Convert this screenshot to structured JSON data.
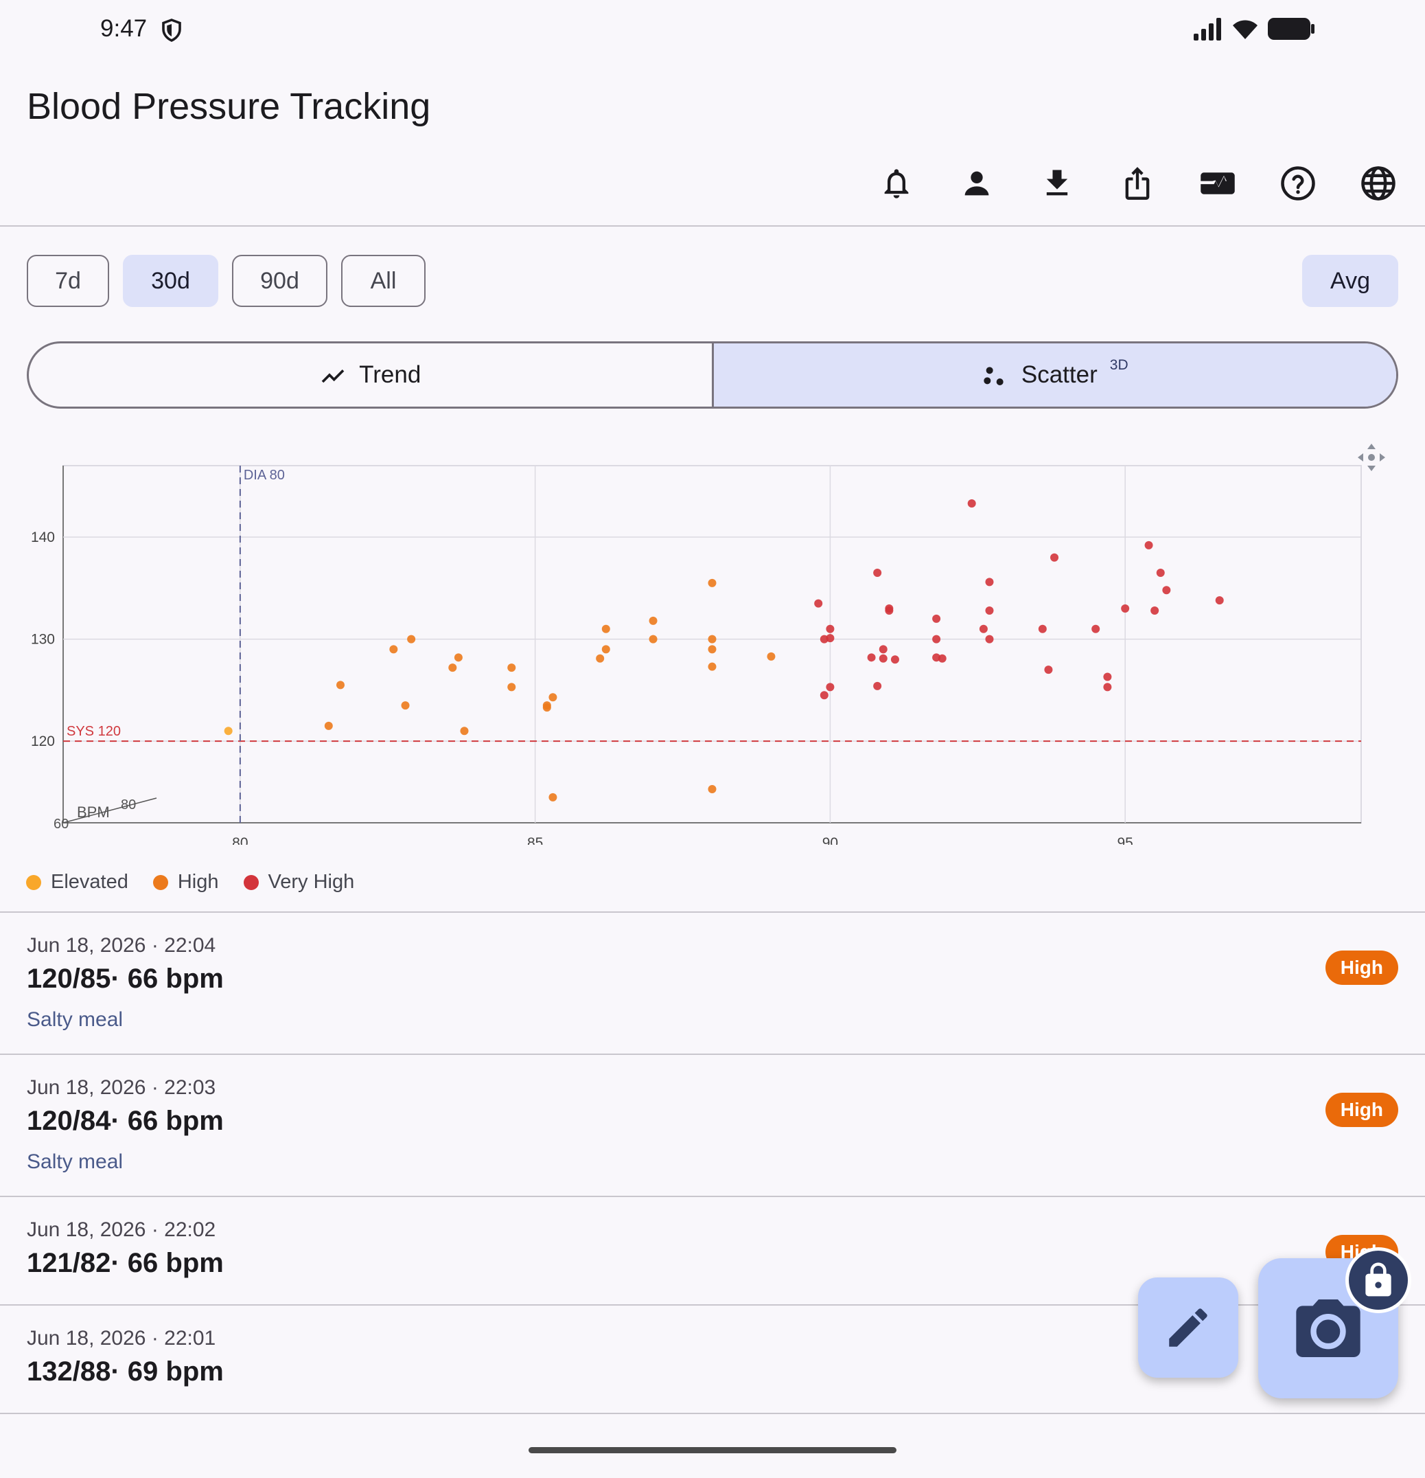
{
  "status": {
    "time": "9:47"
  },
  "app": {
    "title": "Blood Pressure Tracking"
  },
  "toolbar": {
    "icons": [
      "bell-icon",
      "person-icon",
      "download-icon",
      "share-icon",
      "monitor-heart-icon",
      "help-icon",
      "globe-icon"
    ]
  },
  "range_chips": [
    {
      "label": "7d",
      "selected": false
    },
    {
      "label": "30d",
      "selected": true
    },
    {
      "label": "90d",
      "selected": false
    },
    {
      "label": "All",
      "selected": false
    }
  ],
  "avg_chip": {
    "label": "Avg"
  },
  "view_toggle": {
    "trend_label": "Trend",
    "scatter_label": "Scatter",
    "scatter_badge": "3D",
    "selected": "scatter"
  },
  "chart_data": {
    "type": "scatter",
    "xlabel": "",
    "ylabel": "",
    "x_ticks": [
      "80",
      "85",
      "90",
      "95"
    ],
    "y_ticks": [
      "140",
      "130",
      "120"
    ],
    "xlim": [
      77,
      99
    ],
    "ylim": [
      112,
      147
    ],
    "reference_lines": [
      {
        "label": "SYS 120",
        "axis": "y",
        "value": 120,
        "color": "#d0393e"
      },
      {
        "label": "DIA 80",
        "axis": "x",
        "value": 80,
        "color": "#5d6396"
      }
    ],
    "bpm_axis": {
      "label": "BPM",
      "ticks": [
        "60",
        "80"
      ]
    },
    "grid": true,
    "legend": "bottom-left",
    "series": [
      {
        "name": "Elevated",
        "color": "#f9a72a",
        "points": [
          [
            79.8,
            121
          ]
        ]
      },
      {
        "name": "High",
        "color": "#ec7a1c",
        "points": [
          [
            81.5,
            121.5
          ],
          [
            81.7,
            125.5
          ],
          [
            82.6,
            129
          ],
          [
            82.8,
            123.5
          ],
          [
            82.9,
            130
          ],
          [
            83.6,
            127.2
          ],
          [
            83.7,
            128.2
          ],
          [
            83.8,
            121
          ],
          [
            84.6,
            127.2
          ],
          [
            84.6,
            125.3
          ],
          [
            85.2,
            123.3
          ],
          [
            85.2,
            123.5
          ],
          [
            85.3,
            124.3
          ],
          [
            85.3,
            114.5
          ],
          [
            86.1,
            128.1
          ],
          [
            86.2,
            131
          ],
          [
            86.2,
            129
          ],
          [
            87,
            131.8
          ],
          [
            87,
            130
          ],
          [
            88,
            135.5
          ],
          [
            88,
            130
          ],
          [
            88,
            129
          ],
          [
            88,
            127.3
          ],
          [
            88,
            115.3
          ],
          [
            89,
            128.3
          ]
        ]
      },
      {
        "name": "Very High",
        "color": "#d3343b",
        "points": [
          [
            89.8,
            133.5
          ],
          [
            89.9,
            124.5
          ],
          [
            90,
            125.3
          ],
          [
            89.9,
            130
          ],
          [
            90,
            130.1
          ],
          [
            90,
            131
          ],
          [
            90.7,
            128.2
          ],
          [
            90.8,
            136.5
          ],
          [
            90.8,
            125.4
          ],
          [
            90.9,
            129
          ],
          [
            90.9,
            128.1
          ],
          [
            91,
            133
          ],
          [
            91,
            132.8
          ],
          [
            91.1,
            128
          ],
          [
            91.8,
            132
          ],
          [
            91.8,
            130
          ],
          [
            91.8,
            128.2
          ],
          [
            91.9,
            128.1
          ],
          [
            92.4,
            143.3
          ],
          [
            92.6,
            131
          ],
          [
            92.7,
            135.6
          ],
          [
            92.7,
            132.8
          ],
          [
            92.7,
            130
          ],
          [
            93.8,
            138
          ],
          [
            93.6,
            131
          ],
          [
            93.7,
            127
          ],
          [
            94.5,
            131
          ],
          [
            94.7,
            126.3
          ],
          [
            94.7,
            125.3
          ],
          [
            95,
            133
          ],
          [
            95.4,
            139.2
          ],
          [
            95.5,
            132.8
          ],
          [
            95.6,
            136.5
          ],
          [
            95.7,
            134.8
          ],
          [
            96.6,
            133.8
          ]
        ]
      }
    ]
  },
  "legend": [
    {
      "label": "Elevated",
      "color": "#f9a72a"
    },
    {
      "label": "High",
      "color": "#ec7a1c"
    },
    {
      "label": "Very High",
      "color": "#d3343b"
    }
  ],
  "entries": [
    {
      "date": "Jun 18, 2026 · 22:04",
      "reading": "120/85· 66 bpm",
      "note": "Salty meal",
      "badge": "High"
    },
    {
      "date": "Jun 18, 2026 · 22:03",
      "reading": "120/84· 66 bpm",
      "note": "Salty meal",
      "badge": "High"
    },
    {
      "date": "Jun 18, 2026 · 22:02",
      "reading": "121/82· 66 bpm",
      "note": "",
      "badge": "High"
    },
    {
      "date": "Jun 18, 2026 · 22:01",
      "reading": "132/88· 69 bpm",
      "note": "",
      "badge": ""
    }
  ],
  "colors": {
    "accent": "#dde1f9",
    "fab": "#bccdfc",
    "badge_high": "#ea6a0a"
  }
}
